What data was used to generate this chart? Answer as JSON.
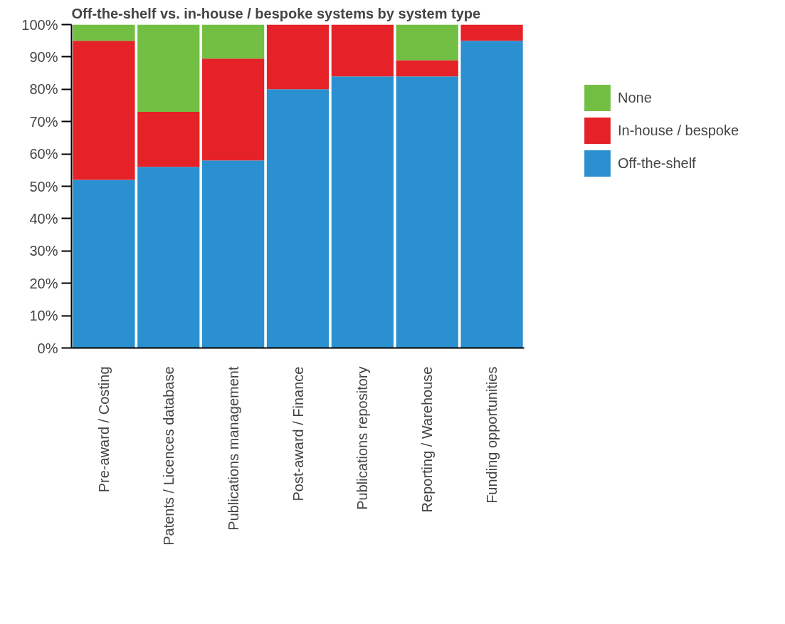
{
  "chart_data": {
    "type": "bar",
    "title": "Off-the-shelf vs. in-house / bespoke systems by system type",
    "categories": [
      "Pre-award / Costing",
      "Patents / Licences database",
      "Publications management",
      "Post-award / Finance",
      "Publications repository",
      "Reporting / Warehouse",
      "Funding opportunities"
    ],
    "stacked": true,
    "series": [
      {
        "name": "Off-the-shelf",
        "color": "#2a90d0",
        "values": [
          52,
          56,
          58,
          80,
          84,
          84,
          95
        ]
      },
      {
        "name": "In-house / bespoke",
        "color": "#e42227",
        "values": [
          43,
          17,
          31.5,
          20,
          16,
          5,
          5
        ]
      },
      {
        "name": "None",
        "color": "#72bf44",
        "values": [
          5,
          27,
          10.5,
          null,
          null,
          11,
          null
        ]
      }
    ],
    "ylim": [
      0,
      100
    ],
    "yticks": [
      {
        "value": 0,
        "label": "0%"
      },
      {
        "value": 10,
        "label": "10%"
      },
      {
        "value": 20,
        "label": "20%"
      },
      {
        "value": 30,
        "label": "30%"
      },
      {
        "value": 40,
        "label": "40%"
      },
      {
        "value": 50,
        "label": "50%"
      },
      {
        "value": 60,
        "label": "60%"
      },
      {
        "value": 70,
        "label": "70%"
      },
      {
        "value": 80,
        "label": "80%"
      },
      {
        "value": 90,
        "label": "90%"
      },
      {
        "value": 100,
        "label": "100%"
      }
    ],
    "grid": false,
    "legend": "right"
  }
}
